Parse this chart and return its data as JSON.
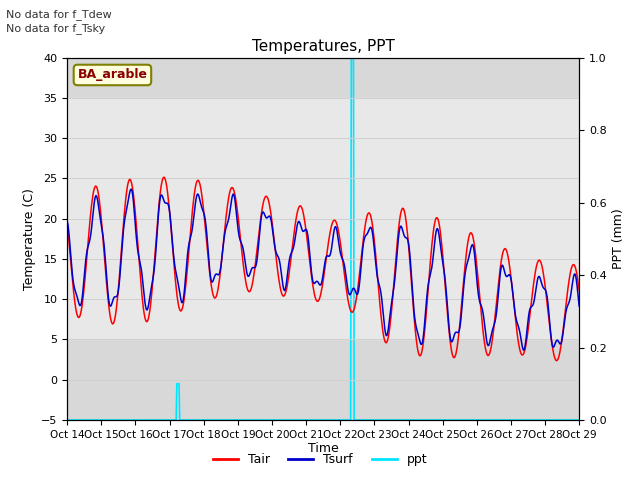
{
  "title": "Temperatures, PPT",
  "xlabel": "Time",
  "ylabel_left": "Temperature (C)",
  "ylabel_right": "PPT (mm)",
  "annotations": [
    "No data for f_Tdew",
    "No data for f_Tsky"
  ],
  "site_label": "BA_arable",
  "xlim": [
    0,
    15
  ],
  "ylim_left": [
    -5,
    40
  ],
  "ylim_right": [
    0.0,
    1.0
  ],
  "xtick_labels": [
    "Oct 14",
    "Oct 15",
    "Oct 16",
    "Oct 17",
    "Oct 18",
    "Oct 19",
    "Oct 20",
    "Oct 21",
    "Oct 22",
    "Oct 23",
    "Oct 24",
    "Oct 25",
    "Oct 26",
    "Oct 27",
    "Oct 28",
    "Oct 29"
  ],
  "ytick_left": [
    -5,
    0,
    5,
    10,
    15,
    20,
    25,
    30,
    35,
    40
  ],
  "ytick_right": [
    0.0,
    0.2,
    0.4,
    0.6,
    0.8,
    1.0
  ],
  "grid_color": "#d0d0d0",
  "bg_outer_color": "#d8d8d8",
  "bg_inner_color": "#e8e8e8",
  "tair_color": "#ff0000",
  "tsurf_color": "#0000cc",
  "ppt_color": "#00e5ff",
  "legend_labels": [
    "Tair",
    "Tsurf",
    "ppt"
  ],
  "ppt_spike1_day": 3.25,
  "ppt_spike1_height": 0.1,
  "ppt_spike2_day": 8.35,
  "ppt_spike2_height": 1.0
}
